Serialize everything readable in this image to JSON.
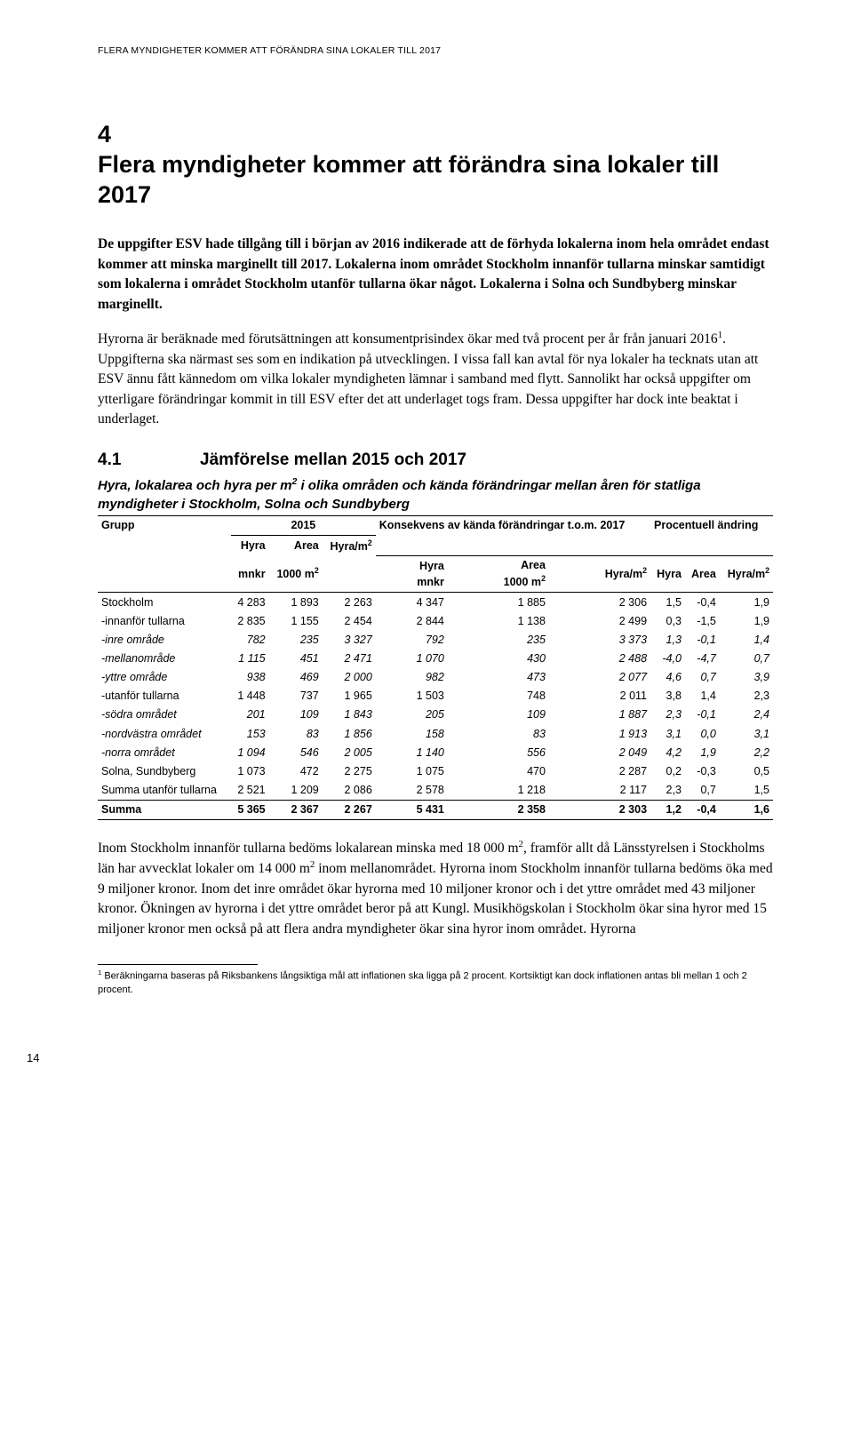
{
  "running_header": "FLERA MYNDIGHETER KOMMER ATT FÖRÄNDRA SINA LOKALER TILL 2017",
  "section": {
    "number": "4",
    "title": "Flera myndigheter kommer att förändra sina lokaler till 2017"
  },
  "para1": "De uppgifter ESV hade tillgång till i början av 2016 indikerade att de förhyda lokalerna inom hela området endast kommer att minska marginellt till 2017. Lokalerna inom området Stockholm innanför tullarna minskar samtidigt som lokalerna i området Stockholm utanför tullarna ökar något. Lokalerna i Solna och Sundbyberg minskar marginellt.",
  "para2_a": "Hyrorna är beräknade med förutsättningen att konsumentprisindex ökar med två procent per år från januari 2016",
  "para2_b": ". Uppgifterna ska närmast ses som en indikation på utvecklingen. I vissa fall kan avtal för nya lokaler ha tecknats utan att ESV ännu fått kännedom om vilka lokaler myndigheten lämnar i samband med flytt. Sannolikt har också uppgifter om ytterligare förändringar kommit in till ESV efter det att underlaget togs fram. Dessa uppgifter har dock inte beaktat i underlaget.",
  "subsection": {
    "number": "4.1",
    "title": "Jämförelse mellan 2015 och 2017"
  },
  "table_caption_a": "Hyra, lokalarea och hyra per m",
  "table_caption_b": " i olika områden och kända förändringar mellan åren för statliga myndigheter i Stockholm, Solna och Sundbyberg",
  "table": {
    "group_label": "Grupp",
    "col_group_2015": "2015",
    "col_group_2017": "Konsekvens av kända förändringar t.o.m. 2017",
    "col_group_pct": "Procentuell ändring",
    "hyra": "Hyra",
    "area": "Area",
    "hyram2": "Hyra/m",
    "mnkr": "mnkr",
    "thousand_m2": "1000 m",
    "rows": [
      {
        "label": "Stockholm",
        "indent": 0,
        "ital": false,
        "vals": [
          "4 283",
          "1 893",
          "2 263",
          "4 347",
          "1 885",
          "2 306",
          "1,5",
          "-0,4",
          "1,9"
        ]
      },
      {
        "label": "-innanför tullarna",
        "indent": 1,
        "ital": false,
        "vals": [
          "2 835",
          "1 155",
          "2 454",
          "2 844",
          "1 138",
          "2 499",
          "0,3",
          "-1,5",
          "1,9"
        ]
      },
      {
        "label": "-inre område",
        "indent": 2,
        "ital": true,
        "vals": [
          "782",
          "235",
          "3 327",
          "792",
          "235",
          "3 373",
          "1,3",
          "-0,1",
          "1,4"
        ]
      },
      {
        "label": "-mellanområde",
        "indent": 2,
        "ital": true,
        "vals": [
          "1 115",
          "451",
          "2 471",
          "1 070",
          "430",
          "2 488",
          "-4,0",
          "-4,7",
          "0,7"
        ]
      },
      {
        "label": "-yttre område",
        "indent": 2,
        "ital": true,
        "vals": [
          "938",
          "469",
          "2 000",
          "982",
          "473",
          "2 077",
          "4,6",
          "0,7",
          "3,9"
        ]
      },
      {
        "label": "-utanför tullarna",
        "indent": 1,
        "ital": false,
        "vals": [
          "1 448",
          "737",
          "1 965",
          "1 503",
          "748",
          "2 011",
          "3,8",
          "1,4",
          "2,3"
        ]
      },
      {
        "label": "-södra området",
        "indent": 2,
        "ital": true,
        "vals": [
          "201",
          "109",
          "1 843",
          "205",
          "109",
          "1 887",
          "2,3",
          "-0,1",
          "2,4"
        ]
      },
      {
        "label": "-nordvästra området",
        "indent": 2,
        "ital": true,
        "vals": [
          "153",
          "83",
          "1 856",
          "158",
          "83",
          "1 913",
          "3,1",
          "0,0",
          "3,1"
        ]
      },
      {
        "label": "-norra området",
        "indent": 2,
        "ital": true,
        "vals": [
          "1 094",
          "546",
          "2 005",
          "1 140",
          "556",
          "2 049",
          "4,2",
          "1,9",
          "2,2"
        ]
      },
      {
        "label": "Solna, Sundbyberg",
        "indent": 0,
        "ital": false,
        "vals": [
          "1 073",
          "472",
          "2 275",
          "1 075",
          "470",
          "2 287",
          "0,2",
          "-0,3",
          "0,5"
        ]
      },
      {
        "label": "Summa utanför tullarna",
        "indent": 0,
        "ital": false,
        "vals": [
          "2 521",
          "1 209",
          "2 086",
          "2 578",
          "1 218",
          "2 117",
          "2,3",
          "0,7",
          "1,5"
        ]
      },
      {
        "label": "Summa",
        "indent": 0,
        "ital": false,
        "bold": true,
        "vals": [
          "5 365",
          "2 367",
          "2 267",
          "5 431",
          "2 358",
          "2 303",
          "1,2",
          "-0,4",
          "1,6"
        ]
      }
    ]
  },
  "para3_a": "Inom Stockholm innanför tullarna bedöms lokalarean minska med 18 000 m",
  "para3_b": ", framför allt då Länsstyrelsen i Stockholms län har avvecklat lokaler om 14 000 m",
  "para3_c": " inom mellanområdet. Hyrorna inom Stockholm innanför tullarna bedöms öka med 9 miljoner kronor. Inom det inre området ökar hyrorna med 10 miljoner kronor och i det yttre området med 43 miljoner kronor. Ökningen av hyrorna i det yttre området beror på att Kungl. Musikhögskolan i Stockholm ökar sina hyror med 15 miljoner kronor men också på att flera andra myndigheter ökar sina hyror inom området. Hyrorna",
  "footnote_marker": "1",
  "footnote_text": " Beräkningarna baseras på Riksbankens långsiktiga mål att inflationen ska ligga på 2 procent. Kortsiktigt kan dock inflationen antas bli mellan 1 och 2 procent.",
  "page_number": "14"
}
